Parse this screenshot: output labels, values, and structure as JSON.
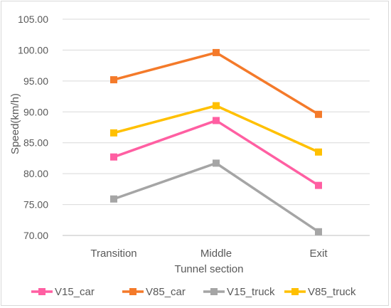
{
  "chart_data": {
    "type": "line",
    "title": "",
    "xlabel": "Tunnel section",
    "ylabel": "Speed(km/h)",
    "categories": [
      "Transition",
      "Middle",
      "Exit"
    ],
    "ylim": [
      70,
      105
    ],
    "yticks": [
      "70.00",
      "75.00",
      "80.00",
      "85.00",
      "90.00",
      "95.00",
      "100.00",
      "105.00"
    ],
    "grid": "horizontal",
    "legend_position": "bottom",
    "series": [
      {
        "name": "V15_car",
        "color": "#ff5fa2",
        "values": [
          82.7,
          88.6,
          78.1
        ]
      },
      {
        "name": "V85_car",
        "color": "#f47a2a",
        "values": [
          95.2,
          99.6,
          89.6
        ]
      },
      {
        "name": "V15_truck",
        "color": "#a5a5a5",
        "values": [
          75.9,
          81.7,
          70.6
        ]
      },
      {
        "name": "V85_truck",
        "color": "#ffc000",
        "values": [
          86.6,
          91.0,
          83.5
        ]
      }
    ]
  }
}
